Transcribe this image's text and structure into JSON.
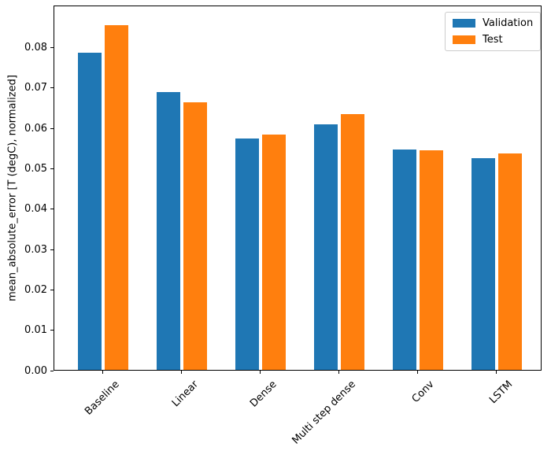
{
  "figure": {
    "background": "#ffffff",
    "title": ""
  },
  "chart_data": {
    "type": "bar",
    "title": "",
    "categories": [
      "Baseline",
      "Linear",
      "Dense",
      "Multi step dense",
      "Conv",
      "LSTM"
    ],
    "series": [
      {
        "name": "Validation",
        "color": "#1f77b4",
        "values": [
          0.0788,
          0.069,
          0.0574,
          0.0609,
          0.0547,
          0.0526
        ]
      },
      {
        "name": "Test",
        "color": "#ff7f0e",
        "values": [
          0.0856,
          0.0665,
          0.0585,
          0.0636,
          0.0545,
          0.0537
        ]
      }
    ],
    "xlabel": "",
    "ylabel": "mean_absolute_error [T (degC), normalized]",
    "ylim": [
      0,
      0.0904
    ],
    "ytick_values": [
      0,
      0.01,
      0.02,
      0.03,
      0.04,
      0.05,
      0.06,
      0.07,
      0.08
    ],
    "ytick_labels": [
      "0.00",
      "0.01",
      "0.02",
      "0.03",
      "0.04",
      "0.05",
      "0.06",
      "0.07",
      "0.08"
    ],
    "xtick_rotation_deg": 45,
    "bar_width": 0.3,
    "group_offset": 0.17,
    "grid": false,
    "legend": {
      "position": "upper right",
      "entries": [
        "Validation",
        "Test"
      ]
    }
  }
}
